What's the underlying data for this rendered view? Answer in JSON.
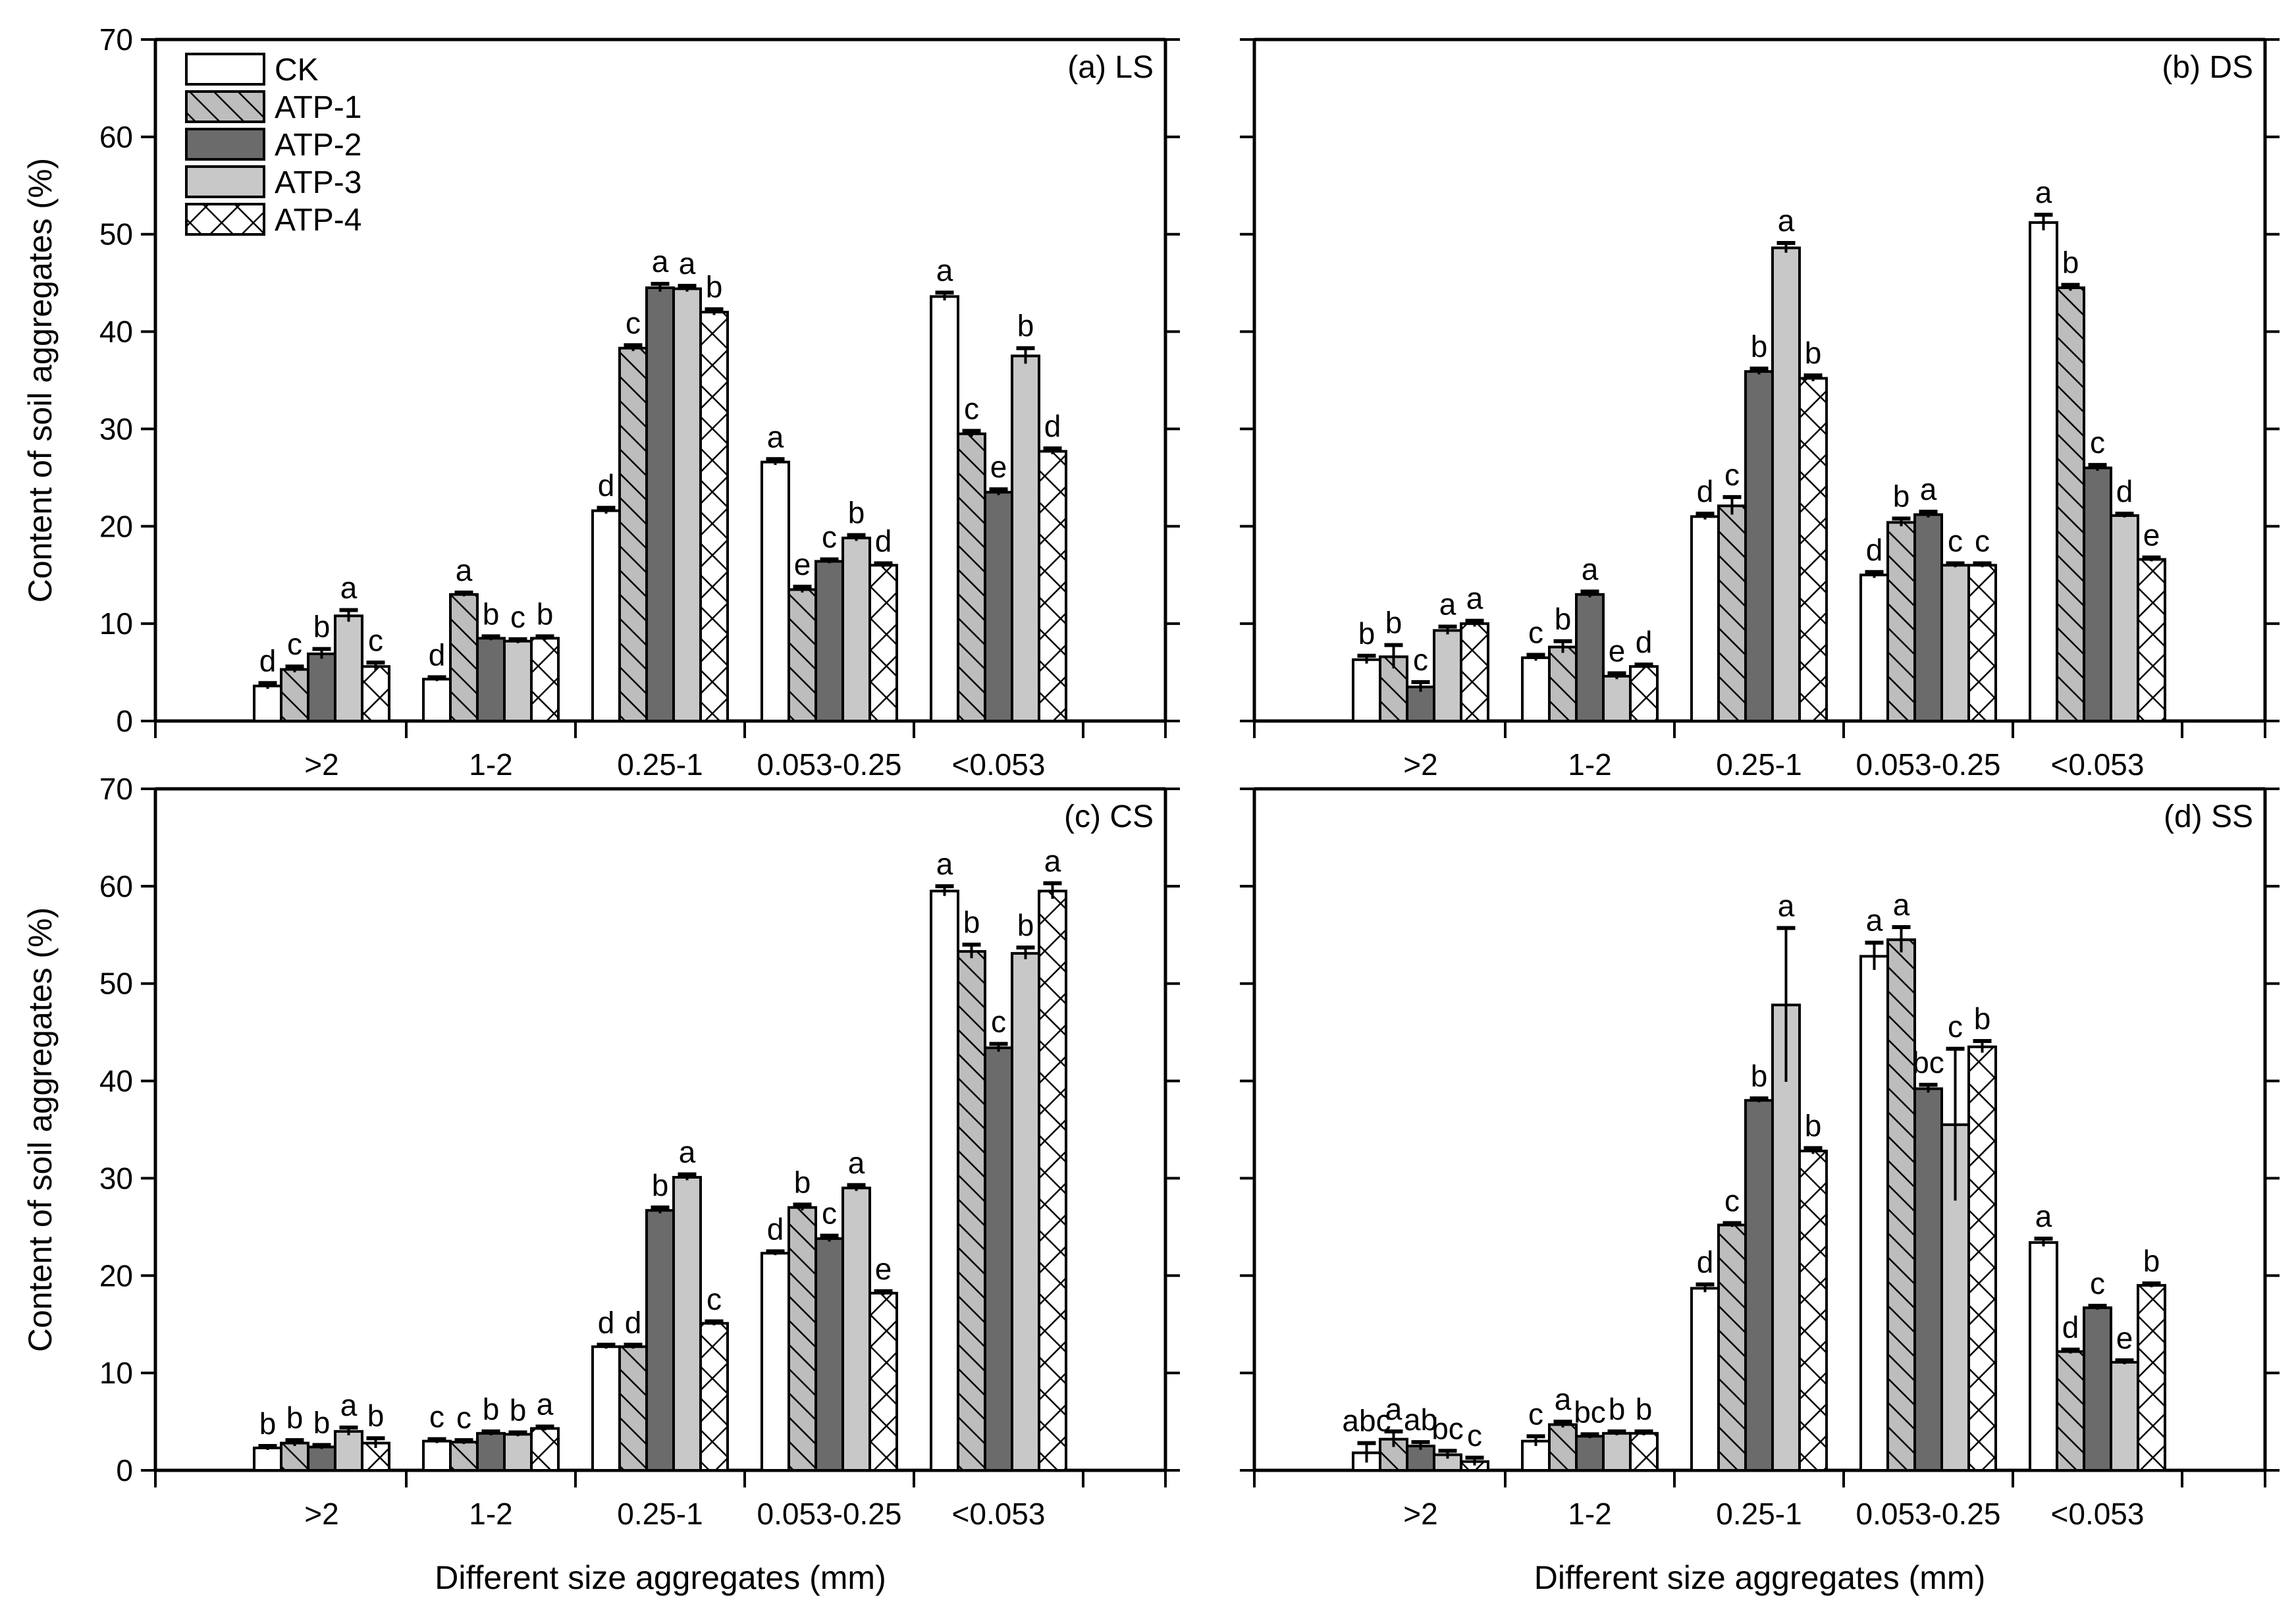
{
  "chart_data": {
    "type": "bar",
    "categories": [
      ">2",
      "1-2",
      "0.25-1",
      "0.053-0.25",
      "<0.053"
    ],
    "xlabel": "Different size aggregates (mm)",
    "ylabel": "Content of soil aggregates (%)",
    "ylim": [
      0,
      70
    ],
    "yticks": [
      "0",
      "10",
      "20",
      "30",
      "40",
      "50",
      "60",
      "70"
    ],
    "legend": {
      "placement": "top-left of panel (a)",
      "entries": [
        "CK",
        "ATP-1",
        "ATP-2",
        "ATP-3",
        "ATP-4"
      ]
    },
    "series_styles": [
      {
        "name": "CK",
        "fill": "#ffffff",
        "pattern": "none"
      },
      {
        "name": "ATP-1",
        "fill": "#bdbdbd",
        "pattern": "diagonal-hatch"
      },
      {
        "name": "ATP-2",
        "fill": "#6b6b6b",
        "pattern": "none"
      },
      {
        "name": "ATP-3",
        "fill": "#c8c8c8",
        "pattern": "none"
      },
      {
        "name": "ATP-4",
        "fill": "#ffffff",
        "pattern": "cross-hatch"
      }
    ],
    "panels": [
      {
        "title": "(a) LS",
        "series": [
          {
            "name": "CK",
            "values": [
              3.6,
              4.3,
              21.6,
              26.6,
              43.6
            ],
            "errors": [
              0.3,
              0.2,
              0.3,
              0.3,
              0.4
            ],
            "letters": [
              "d",
              "d",
              "d",
              "a",
              "a"
            ]
          },
          {
            "name": "ATP-1",
            "values": [
              5.3,
              13.0,
              38.3,
              13.5,
              29.5
            ],
            "errors": [
              0.3,
              0.2,
              0.3,
              0.3,
              0.3
            ],
            "letters": [
              "c",
              "a",
              "c",
              "e",
              "c"
            ]
          },
          {
            "name": "ATP-2",
            "values": [
              6.9,
              8.5,
              44.5,
              16.4,
              23.5
            ],
            "errors": [
              0.5,
              0.2,
              0.4,
              0.2,
              0.3
            ],
            "letters": [
              "b",
              "b",
              "a",
              "c",
              "e"
            ]
          },
          {
            "name": "ATP-3",
            "values": [
              10.8,
              8.2,
              44.4,
              18.8,
              37.5
            ],
            "errors": [
              0.6,
              0.2,
              0.3,
              0.3,
              0.8
            ],
            "letters": [
              "a",
              "c",
              "a",
              "b",
              "b"
            ]
          },
          {
            "name": "ATP-4",
            "values": [
              5.6,
              8.5,
              42.0,
              16.0,
              27.7
            ],
            "errors": [
              0.4,
              0.2,
              0.3,
              0.2,
              0.3
            ],
            "letters": [
              "c",
              "b",
              "b",
              "d",
              "d"
            ]
          }
        ]
      },
      {
        "title": "(b) DS",
        "series": [
          {
            "name": "CK",
            "values": [
              6.3,
              6.5,
              21.0,
              15.0,
              51.2
            ],
            "errors": [
              0.4,
              0.3,
              0.3,
              0.3,
              0.8
            ],
            "letters": [
              "b",
              "c",
              "d",
              "d",
              "a"
            ]
          },
          {
            "name": "ATP-1",
            "values": [
              6.6,
              7.6,
              22.1,
              20.4,
              44.5
            ],
            "errors": [
              1.2,
              0.6,
              0.9,
              0.4,
              0.3
            ],
            "letters": [
              "b",
              "b",
              "c",
              "b",
              "b"
            ]
          },
          {
            "name": "ATP-2",
            "values": [
              3.5,
              13.0,
              35.9,
              21.2,
              26.0
            ],
            "errors": [
              0.5,
              0.3,
              0.3,
              0.3,
              0.3
            ],
            "letters": [
              "c",
              "a",
              "b",
              "a",
              "c"
            ]
          },
          {
            "name": "ATP-3",
            "values": [
              9.3,
              4.6,
              48.6,
              16.0,
              21.1
            ],
            "errors": [
              0.4,
              0.3,
              0.5,
              0.2,
              0.2
            ],
            "letters": [
              "a",
              "e",
              "a",
              "c",
              "d"
            ]
          },
          {
            "name": "ATP-4",
            "values": [
              10.0,
              5.6,
              35.2,
              16.0,
              16.6
            ],
            "errors": [
              0.3,
              0.2,
              0.3,
              0.2,
              0.2
            ],
            "letters": [
              "a",
              "d",
              "b",
              "c",
              "e"
            ]
          }
        ]
      },
      {
        "title": "(c) CS",
        "series": [
          {
            "name": "CK",
            "values": [
              2.3,
              3.0,
              12.7,
              22.3,
              59.5
            ],
            "errors": [
              0.2,
              0.2,
              0.2,
              0.2,
              0.5
            ],
            "letters": [
              "b",
              "c",
              "d",
              "d",
              "a"
            ]
          },
          {
            "name": "ATP-1",
            "values": [
              2.8,
              2.9,
              12.7,
              27.0,
              53.3
            ],
            "errors": [
              0.3,
              0.2,
              0.2,
              0.3,
              0.7
            ],
            "letters": [
              "b",
              "c",
              "d",
              "b",
              "b"
            ]
          },
          {
            "name": "ATP-2",
            "values": [
              2.4,
              3.8,
              26.7,
              23.8,
              43.4
            ],
            "errors": [
              0.2,
              0.2,
              0.3,
              0.3,
              0.4
            ],
            "letters": [
              "b",
              "b",
              "b",
              "c",
              "c"
            ]
          },
          {
            "name": "ATP-3",
            "values": [
              4.0,
              3.7,
              30.1,
              29.0,
              53.1
            ],
            "errors": [
              0.4,
              0.2,
              0.3,
              0.3,
              0.6
            ],
            "letters": [
              "a",
              "b",
              "a",
              "a",
              "b"
            ]
          },
          {
            "name": "ATP-4",
            "values": [
              2.8,
              4.3,
              15.1,
              18.2,
              59.5
            ],
            "errors": [
              0.5,
              0.2,
              0.2,
              0.2,
              0.8
            ],
            "letters": [
              "b",
              "a",
              "c",
              "e",
              "a"
            ]
          }
        ]
      },
      {
        "title": "(d) SS",
        "series": [
          {
            "name": "CK",
            "values": [
              1.8,
              3.0,
              18.7,
              52.8,
              23.4
            ],
            "errors": [
              1.0,
              0.5,
              0.4,
              1.4,
              0.4
            ],
            "letters": [
              "abc",
              "c",
              "d",
              "a",
              "a"
            ]
          },
          {
            "name": "ATP-1",
            "values": [
              3.2,
              4.7,
              25.2,
              54.5,
              12.2
            ],
            "errors": [
              0.8,
              0.3,
              0.2,
              1.3,
              0.2
            ],
            "letters": [
              "a",
              "a",
              "c",
              "a",
              "d"
            ]
          },
          {
            "name": "ATP-2",
            "values": [
              2.5,
              3.5,
              38.0,
              39.2,
              16.7
            ],
            "errors": [
              0.4,
              0.2,
              0.2,
              0.4,
              0.2
            ],
            "letters": [
              "ab",
              "bc",
              "b",
              "bc",
              "c"
            ]
          },
          {
            "name": "ATP-3",
            "values": [
              1.6,
              3.8,
              47.8,
              35.5,
              11.1
            ],
            "errors": [
              0.4,
              0.2,
              7.9,
              7.8,
              0.2
            ],
            "letters": [
              "bc",
              "b",
              "a",
              "c",
              "e"
            ]
          },
          {
            "name": "ATP-4",
            "values": [
              0.9,
              3.8,
              32.8,
              43.5,
              19.0
            ],
            "errors": [
              0.4,
              0.2,
              0.3,
              0.6,
              0.2
            ],
            "letters": [
              "c",
              "b",
              "b",
              "b",
              "b"
            ]
          }
        ]
      }
    ]
  }
}
